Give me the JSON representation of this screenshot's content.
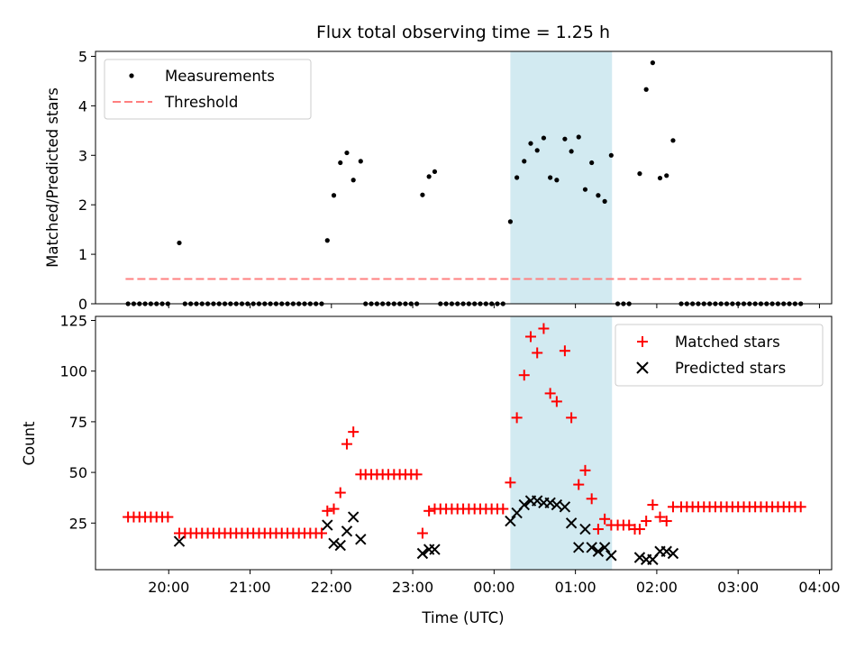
{
  "chart_data": [
    {
      "type": "scatter",
      "title": "Flux total observing time = 1.25 h",
      "xlabel": "",
      "ylabel": "Matched/Predicted stars",
      "ylim": [
        0,
        5.1
      ],
      "yticks": [
        0,
        1,
        2,
        3,
        4,
        5
      ],
      "x_unit": "hours since 19:00 UTC (x axis shared, tick labels shown on lower plot)",
      "xlim": [
        0.1,
        9.15
      ],
      "highlight": {
        "x_start": 5.2,
        "x_end": 6.45,
        "color": "#add8e6"
      },
      "legend_position": "upper-left",
      "series": [
        {
          "name": "Measurements",
          "color": "#000000",
          "marker": "dot",
          "points": [
            [
              0.5,
              0
            ],
            [
              0.57,
              0
            ],
            [
              0.64,
              0
            ],
            [
              0.71,
              0
            ],
            [
              0.78,
              0
            ],
            [
              0.85,
              0
            ],
            [
              0.92,
              0
            ],
            [
              0.99,
              0
            ],
            [
              1.13,
              1.23
            ],
            [
              1.2,
              0
            ],
            [
              1.27,
              0
            ],
            [
              1.34,
              0
            ],
            [
              1.41,
              0
            ],
            [
              1.48,
              0
            ],
            [
              1.55,
              0
            ],
            [
              1.62,
              0
            ],
            [
              1.69,
              0
            ],
            [
              1.76,
              0
            ],
            [
              1.83,
              0
            ],
            [
              1.9,
              0
            ],
            [
              1.97,
              0
            ],
            [
              2.04,
              0
            ],
            [
              2.11,
              0
            ],
            [
              2.18,
              0
            ],
            [
              2.25,
              0
            ],
            [
              2.32,
              0
            ],
            [
              2.39,
              0
            ],
            [
              2.46,
              0
            ],
            [
              2.53,
              0
            ],
            [
              2.6,
              0
            ],
            [
              2.67,
              0
            ],
            [
              2.74,
              0
            ],
            [
              2.81,
              0
            ],
            [
              2.88,
              0
            ],
            [
              2.95,
              1.28
            ],
            [
              3.03,
              2.19
            ],
            [
              3.11,
              2.85
            ],
            [
              3.19,
              3.05
            ],
            [
              3.27,
              2.5
            ],
            [
              3.36,
              2.88
            ],
            [
              3.42,
              0
            ],
            [
              3.49,
              0
            ],
            [
              3.56,
              0
            ],
            [
              3.63,
              0
            ],
            [
              3.7,
              0
            ],
            [
              3.77,
              0
            ],
            [
              3.84,
              0
            ],
            [
              3.91,
              0
            ],
            [
              3.98,
              0
            ],
            [
              4.05,
              0
            ],
            [
              4.12,
              2.2
            ],
            [
              4.2,
              2.57
            ],
            [
              4.27,
              2.67
            ],
            [
              4.34,
              0
            ],
            [
              4.41,
              0
            ],
            [
              4.48,
              0
            ],
            [
              4.55,
              0
            ],
            [
              4.62,
              0
            ],
            [
              4.69,
              0
            ],
            [
              4.76,
              0
            ],
            [
              4.83,
              0
            ],
            [
              4.9,
              0
            ],
            [
              4.97,
              0
            ],
            [
              5.04,
              0
            ],
            [
              5.11,
              0
            ],
            [
              5.2,
              1.66
            ],
            [
              5.28,
              2.55
            ],
            [
              5.37,
              2.88
            ],
            [
              5.45,
              3.24
            ],
            [
              5.53,
              3.1
            ],
            [
              5.61,
              3.35
            ],
            [
              5.69,
              2.55
            ],
            [
              5.77,
              2.5
            ],
            [
              5.87,
              3.33
            ],
            [
              5.95,
              3.08
            ],
            [
              6.04,
              3.37
            ],
            [
              6.12,
              2.31
            ],
            [
              6.2,
              2.85
            ],
            [
              6.28,
              2.19
            ],
            [
              6.36,
              2.07
            ],
            [
              6.44,
              3.0
            ],
            [
              6.52,
              0
            ],
            [
              6.59,
              0
            ],
            [
              6.66,
              0
            ],
            [
              6.79,
              2.63
            ],
            [
              6.87,
              4.33
            ],
            [
              6.95,
              4.87
            ],
            [
              7.04,
              2.54
            ],
            [
              7.12,
              2.59
            ],
            [
              7.2,
              3.3
            ],
            [
              7.3,
              0
            ],
            [
              7.37,
              0
            ],
            [
              7.44,
              0
            ],
            [
              7.51,
              0
            ],
            [
              7.58,
              0
            ],
            [
              7.65,
              0
            ],
            [
              7.72,
              0
            ],
            [
              7.79,
              0
            ],
            [
              7.86,
              0
            ],
            [
              7.93,
              0
            ],
            [
              8.0,
              0
            ],
            [
              8.07,
              0
            ],
            [
              8.14,
              0
            ],
            [
              8.21,
              0
            ],
            [
              8.28,
              0
            ],
            [
              8.35,
              0
            ],
            [
              8.42,
              0
            ],
            [
              8.49,
              0
            ],
            [
              8.56,
              0
            ],
            [
              8.63,
              0
            ],
            [
              8.7,
              0
            ],
            [
              8.77,
              0
            ]
          ]
        },
        {
          "name": "Threshold",
          "color": "#ff8080",
          "style": "dashed",
          "points": [
            [
              0.47,
              0.5
            ],
            [
              8.78,
              0.5
            ]
          ]
        }
      ]
    },
    {
      "type": "scatter",
      "title": "",
      "xlabel": "Time (UTC)",
      "ylabel": "Count",
      "ylim": [
        2,
        127
      ],
      "yticks": [
        25,
        50,
        75,
        100,
        125
      ],
      "xlim": [
        0.1,
        9.15
      ],
      "xticks": [
        1,
        2,
        3,
        4,
        5,
        6,
        7,
        8,
        9
      ],
      "xtick_labels": [
        "20:00",
        "21:00",
        "22:00",
        "23:00",
        "00:00",
        "01:00",
        "02:00",
        "03:00",
        "04:00"
      ],
      "highlight": {
        "x_start": 5.2,
        "x_end": 6.45,
        "color": "#add8e6"
      },
      "legend_position": "upper-right",
      "series": [
        {
          "name": "Matched stars",
          "color": "#ff0000",
          "marker": "plus",
          "points": [
            [
              0.5,
              28
            ],
            [
              0.57,
              28
            ],
            [
              0.64,
              28
            ],
            [
              0.71,
              28
            ],
            [
              0.78,
              28
            ],
            [
              0.85,
              28
            ],
            [
              0.92,
              28
            ],
            [
              0.99,
              28
            ],
            [
              1.13,
              20
            ],
            [
              1.2,
              20
            ],
            [
              1.27,
              20
            ],
            [
              1.34,
              20
            ],
            [
              1.41,
              20
            ],
            [
              1.48,
              20
            ],
            [
              1.55,
              20
            ],
            [
              1.62,
              20
            ],
            [
              1.69,
              20
            ],
            [
              1.76,
              20
            ],
            [
              1.83,
              20
            ],
            [
              1.9,
              20
            ],
            [
              1.97,
              20
            ],
            [
              2.04,
              20
            ],
            [
              2.11,
              20
            ],
            [
              2.18,
              20
            ],
            [
              2.25,
              20
            ],
            [
              2.32,
              20
            ],
            [
              2.39,
              20
            ],
            [
              2.46,
              20
            ],
            [
              2.53,
              20
            ],
            [
              2.6,
              20
            ],
            [
              2.67,
              20
            ],
            [
              2.74,
              20
            ],
            [
              2.81,
              20
            ],
            [
              2.88,
              20
            ],
            [
              2.95,
              31
            ],
            [
              3.03,
              32
            ],
            [
              3.11,
              40
            ],
            [
              3.19,
              64
            ],
            [
              3.27,
              70
            ],
            [
              3.36,
              49
            ],
            [
              3.42,
              49
            ],
            [
              3.49,
              49
            ],
            [
              3.56,
              49
            ],
            [
              3.63,
              49
            ],
            [
              3.7,
              49
            ],
            [
              3.77,
              49
            ],
            [
              3.84,
              49
            ],
            [
              3.91,
              49
            ],
            [
              3.98,
              49
            ],
            [
              4.05,
              49
            ],
            [
              4.12,
              20
            ],
            [
              4.2,
              31
            ],
            [
              4.27,
              32
            ],
            [
              4.34,
              32
            ],
            [
              4.41,
              32
            ],
            [
              4.48,
              32
            ],
            [
              4.55,
              32
            ],
            [
              4.62,
              32
            ],
            [
              4.69,
              32
            ],
            [
              4.76,
              32
            ],
            [
              4.83,
              32
            ],
            [
              4.9,
              32
            ],
            [
              4.97,
              32
            ],
            [
              5.04,
              32
            ],
            [
              5.11,
              32
            ],
            [
              5.2,
              45
            ],
            [
              5.28,
              77
            ],
            [
              5.37,
              98
            ],
            [
              5.45,
              117
            ],
            [
              5.53,
              109
            ],
            [
              5.61,
              121
            ],
            [
              5.69,
              89
            ],
            [
              5.77,
              85
            ],
            [
              5.87,
              110
            ],
            [
              5.95,
              77
            ],
            [
              6.04,
              44
            ],
            [
              6.12,
              51
            ],
            [
              6.2,
              37
            ],
            [
              6.28,
              22
            ],
            [
              6.36,
              27
            ],
            [
              6.44,
              24
            ],
            [
              6.52,
              24
            ],
            [
              6.59,
              24
            ],
            [
              6.66,
              24
            ],
            [
              6.73,
              22
            ],
            [
              6.79,
              22
            ],
            [
              6.87,
              26
            ],
            [
              6.95,
              34
            ],
            [
              7.04,
              28
            ],
            [
              7.12,
              26
            ],
            [
              7.2,
              33
            ],
            [
              7.3,
              33
            ],
            [
              7.37,
              33
            ],
            [
              7.44,
              33
            ],
            [
              7.51,
              33
            ],
            [
              7.58,
              33
            ],
            [
              7.65,
              33
            ],
            [
              7.72,
              33
            ],
            [
              7.79,
              33
            ],
            [
              7.86,
              33
            ],
            [
              7.93,
              33
            ],
            [
              8.0,
              33
            ],
            [
              8.07,
              33
            ],
            [
              8.14,
              33
            ],
            [
              8.21,
              33
            ],
            [
              8.28,
              33
            ],
            [
              8.35,
              33
            ],
            [
              8.42,
              33
            ],
            [
              8.49,
              33
            ],
            [
              8.56,
              33
            ],
            [
              8.63,
              33
            ],
            [
              8.7,
              33
            ],
            [
              8.77,
              33
            ]
          ]
        },
        {
          "name": "Predicted stars",
          "color": "#000000",
          "marker": "x",
          "points": [
            [
              1.13,
              16
            ],
            [
              2.95,
              24
            ],
            [
              3.03,
              15
            ],
            [
              3.11,
              14
            ],
            [
              3.19,
              21
            ],
            [
              3.27,
              28
            ],
            [
              3.36,
              17
            ],
            [
              4.12,
              10
            ],
            [
              4.2,
              12
            ],
            [
              4.27,
              12
            ],
            [
              5.2,
              26
            ],
            [
              5.28,
              30
            ],
            [
              5.37,
              34
            ],
            [
              5.45,
              36
            ],
            [
              5.53,
              36
            ],
            [
              5.61,
              35
            ],
            [
              5.69,
              35
            ],
            [
              5.77,
              34
            ],
            [
              5.87,
              33
            ],
            [
              5.95,
              25
            ],
            [
              6.04,
              13
            ],
            [
              6.12,
              22
            ],
            [
              6.2,
              13
            ],
            [
              6.28,
              11
            ],
            [
              6.36,
              13
            ],
            [
              6.44,
              9
            ],
            [
              6.79,
              8
            ],
            [
              6.87,
              7
            ],
            [
              6.95,
              7
            ],
            [
              7.04,
              11
            ],
            [
              7.12,
              11
            ],
            [
              7.2,
              10
            ]
          ]
        }
      ]
    }
  ]
}
